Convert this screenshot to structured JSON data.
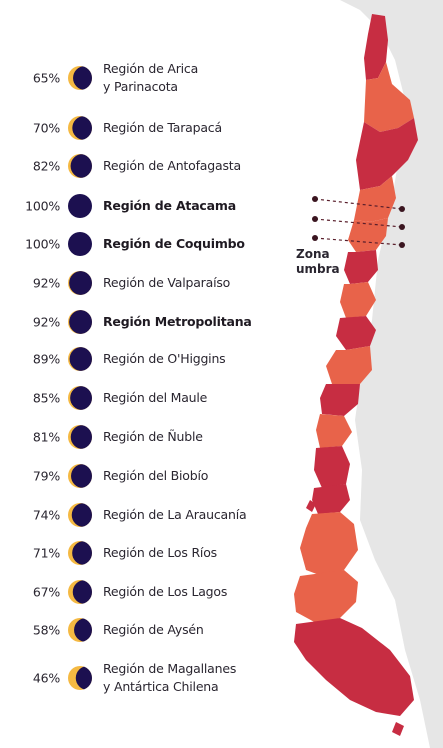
{
  "colors": {
    "moon_dark": "#1c1050",
    "moon_light": "#f5b942",
    "region_dark": "#c72d42",
    "region_light": "#e8634a",
    "land": "#e6e6e6",
    "path_line": "#5a1f2c"
  },
  "regions": [
    {
      "pct": "65%",
      "name": [
        "Región de Arica",
        "y Parinacota"
      ],
      "illum": 0.65,
      "bold": false
    },
    {
      "pct": "70%",
      "name": [
        "Región de Tarapacá"
      ],
      "illum": 0.7,
      "bold": false
    },
    {
      "pct": "82%",
      "name": [
        "Región de Antofagasta"
      ],
      "illum": 0.82,
      "bold": false
    },
    {
      "pct": "100%",
      "name": [
        "Región de Atacama"
      ],
      "illum": 1.0,
      "bold": true
    },
    {
      "pct": "100%",
      "name": [
        "Región de Coquimbo"
      ],
      "illum": 1.0,
      "bold": true
    },
    {
      "pct": "92%",
      "name": [
        "Región de Valparaíso"
      ],
      "illum": 0.92,
      "bold": false
    },
    {
      "pct": "92%",
      "name": [
        "Región Metropolitana"
      ],
      "illum": 0.92,
      "bold": true
    },
    {
      "pct": "89%",
      "name": [
        "Región de O'Higgins"
      ],
      "illum": 0.89,
      "bold": false
    },
    {
      "pct": "85%",
      "name": [
        "Región del Maule"
      ],
      "illum": 0.85,
      "bold": false
    },
    {
      "pct": "81%",
      "name": [
        "Región de Ñuble"
      ],
      "illum": 0.81,
      "bold": false
    },
    {
      "pct": "79%",
      "name": [
        "Región del Biobío"
      ],
      "illum": 0.79,
      "bold": false
    },
    {
      "pct": "74%",
      "name": [
        "Región de La Araucanía"
      ],
      "illum": 0.74,
      "bold": false
    },
    {
      "pct": "71%",
      "name": [
        "Región de Los Ríos"
      ],
      "illum": 0.71,
      "bold": false
    },
    {
      "pct": "67%",
      "name": [
        "Región de Los Lagos"
      ],
      "illum": 0.67,
      "bold": false
    },
    {
      "pct": "58%",
      "name": [
        "Región de Aysén"
      ],
      "illum": 0.58,
      "bold": false
    },
    {
      "pct": "46%",
      "name": [
        "Región de Magallanes",
        "y Antártica Chilena"
      ],
      "illum": 0.46,
      "bold": false
    }
  ],
  "map": {
    "zone_label_line1": "Zona",
    "zone_label_line2": "umbra"
  }
}
